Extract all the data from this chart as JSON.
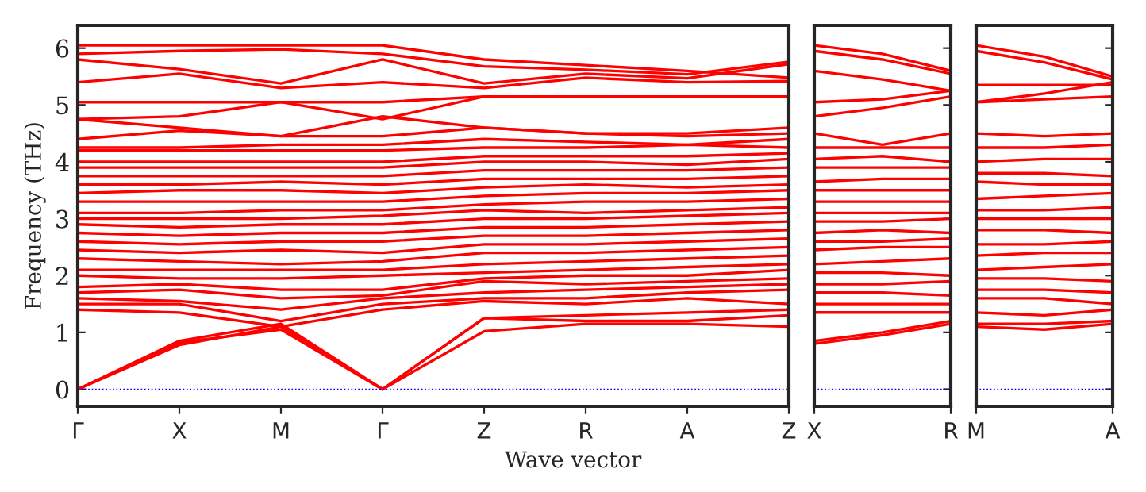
{
  "chart_data": [
    {
      "type": "line",
      "ylabel": "Frequency (THz)",
      "xlabel": "Wave vector",
      "categories": [
        "Γ",
        "X",
        "M",
        "Γ",
        "Z",
        "R",
        "A",
        "Z"
      ],
      "ylim": [
        -0.3,
        6.4
      ],
      "yticks": [
        0,
        1,
        2,
        3,
        4,
        5,
        6
      ],
      "ref_lines": [
        {
          "axis": "y",
          "value": 0,
          "color": "#0000ff",
          "line_style": "dotted"
        }
      ],
      "grid": false,
      "series": [
        {
          "color": "#ff0000",
          "values": [
            0,
            0.78,
            1.1,
            0,
            1.02,
            1.15,
            1.15,
            1.1
          ]
        },
        {
          "color": "#ff0000",
          "values": [
            0,
            0.82,
            1.05,
            0,
            1.25,
            1.2,
            1.2,
            1.3
          ]
        },
        {
          "color": "#ff0000",
          "values": [
            0,
            0.85,
            1.15,
            0,
            1.25,
            1.3,
            1.35,
            1.4
          ]
        },
        {
          "color": "#ff0000",
          "values": [
            1.4,
            1.35,
            1.1,
            1.4,
            1.55,
            1.5,
            1.6,
            1.5
          ]
        },
        {
          "color": "#ff0000",
          "values": [
            1.5,
            1.5,
            1.2,
            1.5,
            1.6,
            1.6,
            1.7,
            1.75
          ]
        },
        {
          "color": "#ff0000",
          "values": [
            1.6,
            1.55,
            1.4,
            1.6,
            1.7,
            1.75,
            1.8,
            1.85
          ]
        },
        {
          "color": "#ff0000",
          "values": [
            1.7,
            1.75,
            1.6,
            1.65,
            1.9,
            1.85,
            1.9,
            1.95
          ]
        },
        {
          "color": "#ff0000",
          "values": [
            1.8,
            1.85,
            1.75,
            1.75,
            1.95,
            2.0,
            2.0,
            2.1
          ]
        },
        {
          "color": "#ff0000",
          "values": [
            2.0,
            1.95,
            1.95,
            2.0,
            2.05,
            2.1,
            2.15,
            2.2
          ]
        },
        {
          "color": "#ff0000",
          "values": [
            2.1,
            2.1,
            2.1,
            2.1,
            2.2,
            2.25,
            2.3,
            2.35
          ]
        },
        {
          "color": "#ff0000",
          "values": [
            2.3,
            2.25,
            2.2,
            2.25,
            2.4,
            2.4,
            2.45,
            2.5
          ]
        },
        {
          "color": "#ff0000",
          "values": [
            2.45,
            2.4,
            2.45,
            2.4,
            2.55,
            2.55,
            2.6,
            2.65
          ]
        },
        {
          "color": "#ff0000",
          "values": [
            2.6,
            2.55,
            2.6,
            2.6,
            2.7,
            2.7,
            2.75,
            2.8
          ]
        },
        {
          "color": "#ff0000",
          "values": [
            2.75,
            2.7,
            2.75,
            2.75,
            2.85,
            2.85,
            2.9,
            2.95
          ]
        },
        {
          "color": "#ff0000",
          "values": [
            2.9,
            2.85,
            2.9,
            2.9,
            3.0,
            3.0,
            3.05,
            3.1
          ]
        },
        {
          "color": "#ff0000",
          "values": [
            3.0,
            3.0,
            3.0,
            3.05,
            3.15,
            3.1,
            3.15,
            3.2
          ]
        },
        {
          "color": "#ff0000",
          "values": [
            3.1,
            3.1,
            3.15,
            3.15,
            3.25,
            3.3,
            3.3,
            3.35
          ]
        },
        {
          "color": "#ff0000",
          "values": [
            3.3,
            3.3,
            3.3,
            3.3,
            3.4,
            3.45,
            3.45,
            3.5
          ]
        },
        {
          "color": "#ff0000",
          "values": [
            3.45,
            3.5,
            3.5,
            3.45,
            3.55,
            3.6,
            3.55,
            3.6
          ]
        },
        {
          "color": "#ff0000",
          "values": [
            3.6,
            3.6,
            3.65,
            3.6,
            3.7,
            3.7,
            3.7,
            3.75
          ]
        },
        {
          "color": "#ff0000",
          "values": [
            3.75,
            3.75,
            3.75,
            3.75,
            3.85,
            3.85,
            3.85,
            3.9
          ]
        },
        {
          "color": "#ff0000",
          "values": [
            3.9,
            3.9,
            3.9,
            3.9,
            4.0,
            4.0,
            3.95,
            4.05
          ]
        },
        {
          "color": "#ff0000",
          "values": [
            4.0,
            4.0,
            4.0,
            4.0,
            4.1,
            4.1,
            4.1,
            4.15
          ]
        },
        {
          "color": "#ff0000",
          "values": [
            4.2,
            4.2,
            4.2,
            4.2,
            4.25,
            4.25,
            4.3,
            4.25
          ]
        },
        {
          "color": "#ff0000",
          "values": [
            4.25,
            4.25,
            4.3,
            4.3,
            4.4,
            4.35,
            4.3,
            4.4
          ]
        },
        {
          "color": "#ff0000",
          "values": [
            4.4,
            4.55,
            4.45,
            4.45,
            4.6,
            4.5,
            4.45,
            4.5
          ]
        },
        {
          "color": "#ff0000",
          "values": [
            4.75,
            4.6,
            4.45,
            4.8,
            4.6,
            4.5,
            4.5,
            4.6
          ]
        },
        {
          "color": "#ff0000",
          "values": [
            4.75,
            4.8,
            5.05,
            4.75,
            5.15,
            5.15,
            5.15,
            5.15
          ]
        },
        {
          "color": "#ff0000",
          "values": [
            5.05,
            5.05,
            5.05,
            5.05,
            5.15,
            5.15,
            5.15,
            5.15
          ]
        },
        {
          "color": "#ff0000",
          "values": [
            5.4,
            5.55,
            5.3,
            5.4,
            5.3,
            5.48,
            5.4,
            5.42
          ]
        },
        {
          "color": "#ff0000",
          "values": [
            5.8,
            5.63,
            5.38,
            5.8,
            5.38,
            5.55,
            5.47,
            5.72
          ]
        },
        {
          "color": "#ff0000",
          "values": [
            5.9,
            5.95,
            5.98,
            5.9,
            5.68,
            5.62,
            5.54,
            5.76
          ]
        },
        {
          "color": "#ff0000",
          "values": [
            6.05,
            6.05,
            6.05,
            6.05,
            5.8,
            5.7,
            5.6,
            5.48
          ]
        }
      ]
    },
    {
      "type": "line",
      "categories": [
        "X",
        null,
        "R"
      ],
      "ylim": [
        -0.3,
        6.4
      ],
      "yticks": [
        0,
        1,
        2,
        3,
        4,
        5,
        6
      ],
      "tick_labels": "x",
      "ref_lines": [
        {
          "axis": "y",
          "value": 0,
          "color": "#0000ff",
          "line_style": "dotted"
        }
      ],
      "grid": false,
      "series": [
        {
          "color": "#ff0000",
          "values": [
            0.8,
            0.95,
            1.15
          ]
        },
        {
          "color": "#ff0000",
          "values": [
            0.85,
            1.0,
            1.2
          ]
        },
        {
          "color": "#ff0000",
          "values": [
            1.35,
            1.35,
            1.35
          ]
        },
        {
          "color": "#ff0000",
          "values": [
            1.5,
            1.5,
            1.5
          ]
        },
        {
          "color": "#ff0000",
          "values": [
            1.7,
            1.7,
            1.65
          ]
        },
        {
          "color": "#ff0000",
          "values": [
            1.85,
            1.85,
            1.9
          ]
        },
        {
          "color": "#ff0000",
          "values": [
            2.05,
            2.05,
            2.0
          ]
        },
        {
          "color": "#ff0000",
          "values": [
            2.2,
            2.25,
            2.3
          ]
        },
        {
          "color": "#ff0000",
          "values": [
            2.45,
            2.5,
            2.5
          ]
        },
        {
          "color": "#ff0000",
          "values": [
            2.6,
            2.6,
            2.65
          ]
        },
        {
          "color": "#ff0000",
          "values": [
            2.75,
            2.8,
            2.75
          ]
        },
        {
          "color": "#ff0000",
          "values": [
            2.95,
            2.95,
            3.0
          ]
        },
        {
          "color": "#ff0000",
          "values": [
            3.1,
            3.1,
            3.1
          ]
        },
        {
          "color": "#ff0000",
          "values": [
            3.3,
            3.3,
            3.3
          ]
        },
        {
          "color": "#ff0000",
          "values": [
            3.5,
            3.5,
            3.5
          ]
        },
        {
          "color": "#ff0000",
          "values": [
            3.65,
            3.7,
            3.7
          ]
        },
        {
          "color": "#ff0000",
          "values": [
            3.9,
            3.9,
            3.9
          ]
        },
        {
          "color": "#ff0000",
          "values": [
            4.05,
            4.1,
            4.0
          ]
        },
        {
          "color": "#ff0000",
          "values": [
            4.25,
            4.25,
            4.25
          ]
        },
        {
          "color": "#ff0000",
          "values": [
            4.5,
            4.3,
            4.5
          ]
        },
        {
          "color": "#ff0000",
          "values": [
            4.8,
            4.95,
            5.15
          ]
        },
        {
          "color": "#ff0000",
          "values": [
            5.05,
            5.1,
            5.25
          ]
        },
        {
          "color": "#ff0000",
          "values": [
            5.6,
            5.45,
            5.25
          ]
        },
        {
          "color": "#ff0000",
          "values": [
            5.95,
            5.8,
            5.55
          ]
        },
        {
          "color": "#ff0000",
          "values": [
            6.05,
            5.9,
            5.6
          ]
        }
      ]
    },
    {
      "type": "line",
      "categories": [
        "M",
        null,
        "A"
      ],
      "ylim": [
        -0.3,
        6.4
      ],
      "yticks": [
        0,
        1,
        2,
        3,
        4,
        5,
        6
      ],
      "tick_labels": "x",
      "ref_lines": [
        {
          "axis": "y",
          "value": 0,
          "color": "#0000ff",
          "line_style": "dotted"
        }
      ],
      "grid": false,
      "series": [
        {
          "color": "#ff0000",
          "values": [
            1.1,
            1.05,
            1.15
          ]
        },
        {
          "color": "#ff0000",
          "values": [
            1.15,
            1.15,
            1.2
          ]
        },
        {
          "color": "#ff0000",
          "values": [
            1.35,
            1.3,
            1.4
          ]
        },
        {
          "color": "#ff0000",
          "values": [
            1.6,
            1.6,
            1.5
          ]
        },
        {
          "color": "#ff0000",
          "values": [
            1.75,
            1.75,
            1.7
          ]
        },
        {
          "color": "#ff0000",
          "values": [
            1.95,
            1.95,
            1.9
          ]
        },
        {
          "color": "#ff0000",
          "values": [
            2.1,
            2.15,
            2.2
          ]
        },
        {
          "color": "#ff0000",
          "values": [
            2.35,
            2.4,
            2.4
          ]
        },
        {
          "color": "#ff0000",
          "values": [
            2.55,
            2.55,
            2.6
          ]
        },
        {
          "color": "#ff0000",
          "values": [
            2.8,
            2.8,
            2.75
          ]
        },
        {
          "color": "#ff0000",
          "values": [
            3.0,
            3.0,
            3.0
          ]
        },
        {
          "color": "#ff0000",
          "values": [
            3.15,
            3.15,
            3.2
          ]
        },
        {
          "color": "#ff0000",
          "values": [
            3.35,
            3.4,
            3.45
          ]
        },
        {
          "color": "#ff0000",
          "values": [
            3.65,
            3.6,
            3.6
          ]
        },
        {
          "color": "#ff0000",
          "values": [
            3.8,
            3.8,
            3.75
          ]
        },
        {
          "color": "#ff0000",
          "values": [
            4.0,
            4.05,
            4.05
          ]
        },
        {
          "color": "#ff0000",
          "values": [
            4.25,
            4.25,
            4.3
          ]
        },
        {
          "color": "#ff0000",
          "values": [
            4.5,
            4.45,
            4.5
          ]
        },
        {
          "color": "#ff0000",
          "values": [
            5.05,
            5.1,
            5.15
          ]
        },
        {
          "color": "#ff0000",
          "values": [
            5.35,
            5.35,
            5.35
          ]
        },
        {
          "color": "#ff0000",
          "values": [
            5.05,
            5.2,
            5.4
          ]
        },
        {
          "color": "#ff0000",
          "values": [
            5.95,
            5.75,
            5.45
          ]
        },
        {
          "color": "#ff0000",
          "values": [
            6.05,
            5.85,
            5.5
          ]
        }
      ]
    }
  ]
}
